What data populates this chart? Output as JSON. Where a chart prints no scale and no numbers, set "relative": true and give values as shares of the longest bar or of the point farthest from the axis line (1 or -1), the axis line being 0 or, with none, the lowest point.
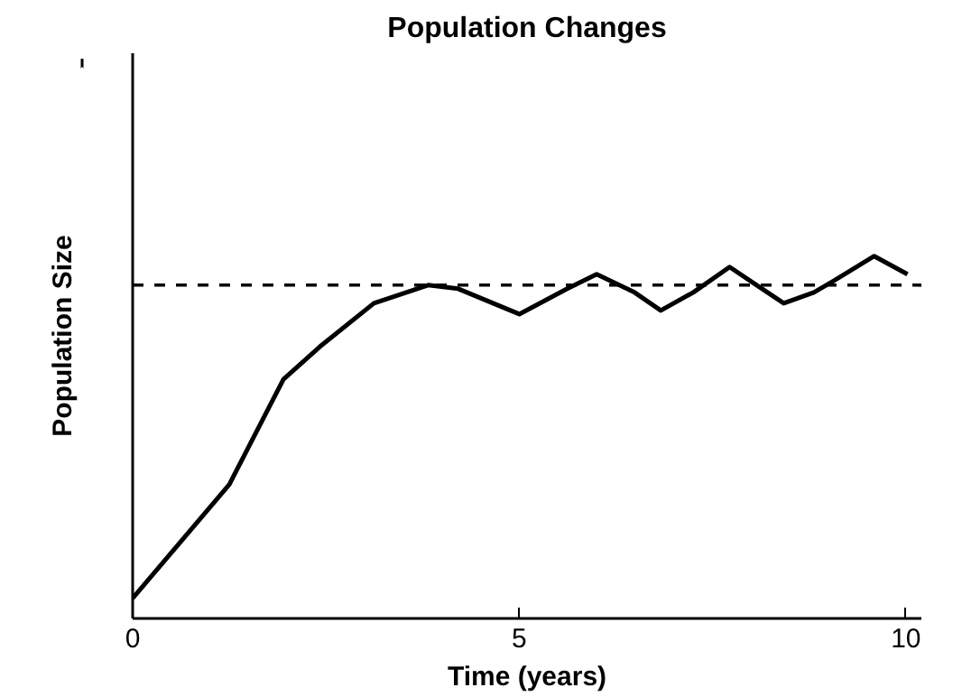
{
  "chart_data": {
    "type": "line",
    "title": "Population Changes",
    "xlabel": "Time (years)",
    "ylabel": "Population Size",
    "relative": true,
    "x": [
      0,
      1.25,
      1.95,
      2.42,
      3.12,
      3.82,
      4.21,
      5.0,
      5.62,
      6.0,
      6.49,
      6.83,
      7.25,
      7.72,
      8.07,
      8.42,
      8.81,
      9.05,
      9.59,
      10.02
    ],
    "series": [
      {
        "color": "#000000",
        "values": [
          0.056,
          0.37,
          0.66,
          0.75,
          0.87,
          0.92,
          0.91,
          0.84,
          0.91,
          0.95,
          0.9,
          0.85,
          0.9,
          0.97,
          0.92,
          0.87,
          0.9,
          0.93,
          1,
          0.95
        ]
      }
    ],
    "ref_lines": [
      {
        "axis": "y",
        "value": 0.92,
        "color": "#000000",
        "line_style": "dashed"
      }
    ],
    "xlim": [
      0,
      10.2
    ],
    "xticks": [
      0,
      5,
      10
    ],
    "grid": false,
    "marker": "none",
    "line_style": "solid"
  }
}
